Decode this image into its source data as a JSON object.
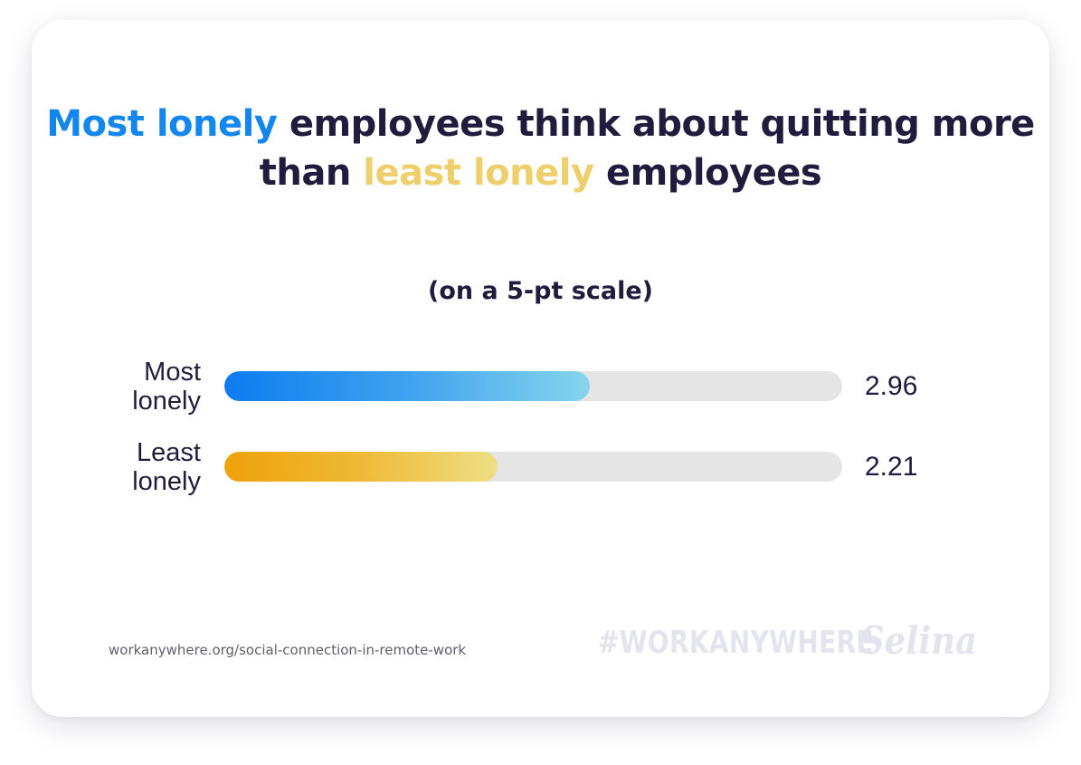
{
  "title": {
    "part1": "Most lonely",
    "part2": " employees think about quitting more than ",
    "part3": "least lonely",
    "part4": " employees"
  },
  "subtitle": "(on a 5-pt scale)",
  "colors": {
    "blue_accent": "#1487ee",
    "yellow_accent": "#efcf6c",
    "text": "#1f1c3d",
    "track": "#e5e5e5"
  },
  "chart_data": {
    "type": "bar",
    "orientation": "horizontal",
    "categories": [
      "Most lonely",
      "Least lonely"
    ],
    "values": [
      2.96,
      2.21
    ],
    "value_labels": [
      "2.96",
      "2.21"
    ],
    "xlim": [
      0,
      5
    ],
    "grid": false,
    "legend": "none"
  },
  "footer": {
    "source": "workanywhere.org/social-connection-in-remote-work",
    "hashtag": "#WORKANYWHERE",
    "logo": "Selina"
  }
}
